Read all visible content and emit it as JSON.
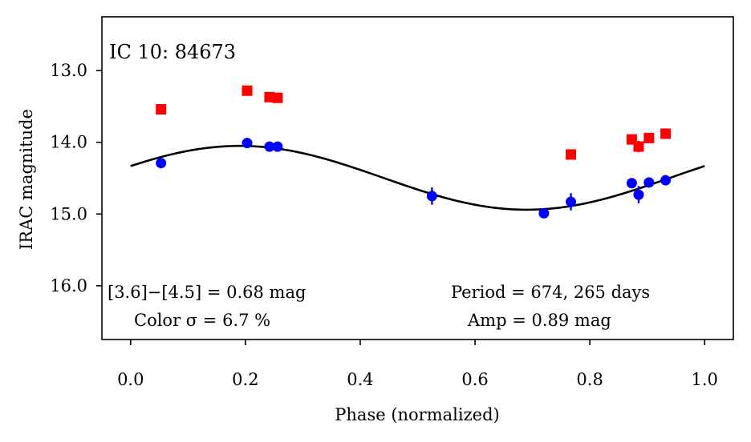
{
  "chart_data": {
    "type": "scatter",
    "title": "IC 10:  84673",
    "xlabel": "Phase (normalized)",
    "ylabel": "IRAC magnitude",
    "xlim": [
      -0.05,
      1.05
    ],
    "ylim": [
      16.75,
      12.25
    ],
    "y_inverted": true,
    "xticks": [
      0.0,
      0.2,
      0.4,
      0.6,
      0.8,
      1.0
    ],
    "xtick_labels": [
      "0.0",
      "0.2",
      "0.4",
      "0.6",
      "0.8",
      "1.0"
    ],
    "yticks": [
      13.0,
      14.0,
      15.0,
      16.0
    ],
    "ytick_labels": [
      "13.0",
      "14.0",
      "15.0",
      "16.0"
    ],
    "grid": false,
    "series": [
      {
        "name": "[3.6]",
        "marker": "circle",
        "color": "#0000ff",
        "x": [
          0.053,
          0.203,
          0.242,
          0.256,
          0.525,
          0.72,
          0.767,
          0.873,
          0.885,
          0.903,
          0.932
        ],
        "y": [
          14.29,
          14.01,
          14.06,
          14.06,
          14.75,
          14.99,
          14.83,
          14.57,
          14.73,
          14.56,
          14.53
        ],
        "err": [
          0.0,
          0.07,
          0.04,
          0.04,
          0.12,
          0.0,
          0.12,
          0.0,
          0.12,
          0.0,
          0.05
        ]
      },
      {
        "name": "[4.5]",
        "marker": "square",
        "color": "#ff0000",
        "x": [
          0.053,
          0.203,
          0.242,
          0.256,
          0.767,
          0.873,
          0.885,
          0.903,
          0.932
        ],
        "y": [
          13.54,
          13.28,
          13.37,
          13.38,
          14.17,
          13.96,
          14.06,
          13.94,
          13.88
        ],
        "err": [
          0.0,
          0.0,
          0.06,
          0.0,
          0.0,
          0.07,
          0.08,
          0.06,
          0.0
        ]
      },
      {
        "name": "fit",
        "type": "line",
        "color": "#000000",
        "model": "sinusoid",
        "mean_mag": 14.495,
        "amplitude": 0.89,
        "phase_of_max_brightness": 0.19
      }
    ],
    "annotations": {
      "color_line1": "[3.6]−[4.5] = 0.68 mag",
      "color_line2": "Color σ = 6.7 %",
      "period": "Period = 674, 265 days",
      "amp": "Amp = 0.89 mag"
    }
  }
}
